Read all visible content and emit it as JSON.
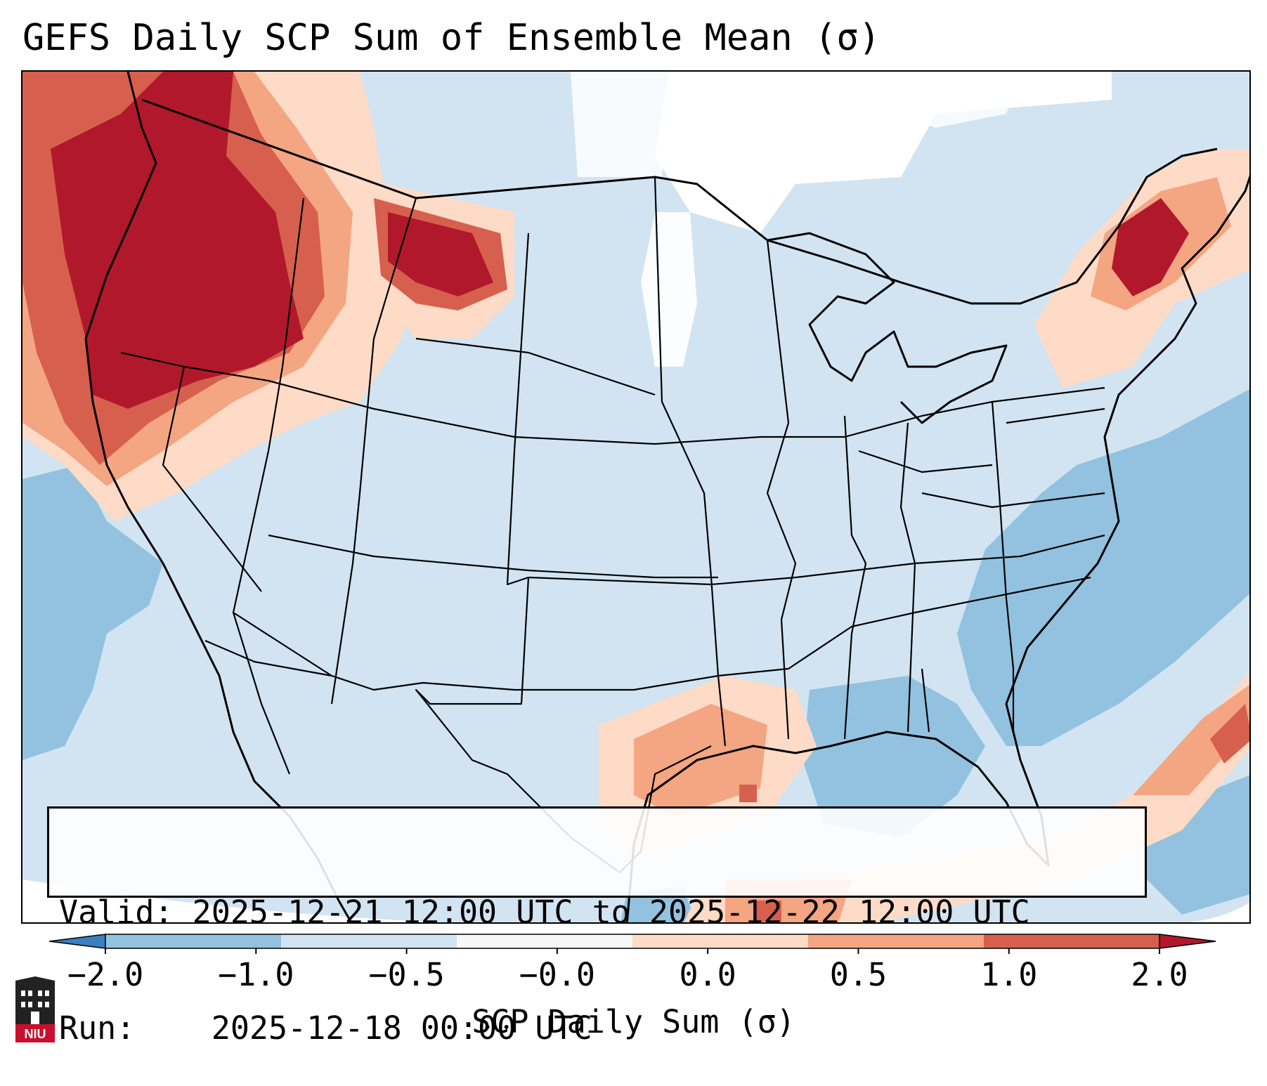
{
  "title": "GEFS Daily SCP Sum of Ensemble Mean (σ)",
  "info": {
    "valid_label": "Valid:",
    "valid_value": "2025-12-21 12:00 UTC to 2025-12-22 12:00 UTC",
    "run_label": "Run:",
    "run_value": "2025-12-18 00:00 UTC"
  },
  "colorbar": {
    "label": "SCP Daily Sum (σ)",
    "ticks": [
      "−2.0",
      "−1.0",
      "−0.5",
      "−0.0",
      "0.0",
      "0.5",
      "1.0",
      "2.0"
    ],
    "colors": [
      "#3a7fbf",
      "#92c2df",
      "#d2e4f1",
      "#f7f7f7",
      "#fddbc7",
      "#f4a582",
      "#d6604d",
      "#b2182b"
    ]
  },
  "map_colors": {
    "background": "#d2e4f1",
    "neutral": "#ffffff",
    "light_blue": "#92c2df",
    "light_red": "#fddbc7",
    "mid_red": "#f4a582",
    "red": "#d6604d",
    "dark_red": "#b2182b",
    "border": "#000000"
  },
  "logo": {
    "text": "NIU"
  }
}
